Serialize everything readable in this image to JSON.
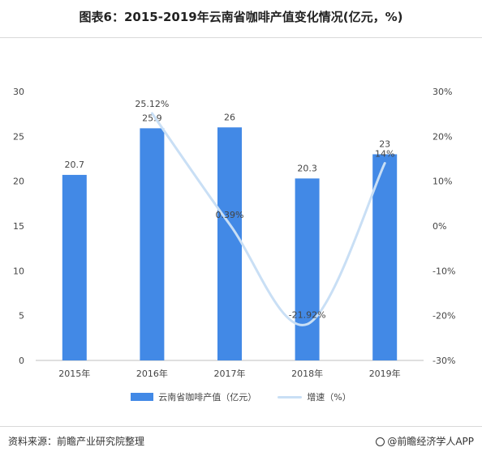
{
  "title": "图表6：2015-2019年云南省咖啡产值变化情况(亿元，%)",
  "source": "资料来源：前瞻产业研究院整理",
  "brand": "@前瞻经济学人APP",
  "colors": {
    "bar": "#4289e6",
    "line": "#c9dff5"
  },
  "chart_data": {
    "type": "bar",
    "categories": [
      "2015年",
      "2016年",
      "2017年",
      "2018年",
      "2019年"
    ],
    "series": [
      {
        "name": "云南省咖啡产值（亿元）",
        "type": "bar",
        "axis": "left",
        "values": [
          20.7,
          25.9,
          26,
          20.3,
          23
        ],
        "labels": [
          "20.7",
          "25.9",
          "26",
          "20.3",
          "23"
        ]
      },
      {
        "name": "增速（%）",
        "type": "line",
        "axis": "right",
        "values": [
          null,
          25.12,
          0.39,
          -21.92,
          14
        ],
        "labels": [
          "",
          "25.12%",
          "0.39%",
          "-21.92%",
          "14%"
        ]
      }
    ],
    "y_left": {
      "min": 0,
      "max": 30,
      "ticks": [
        "0",
        "5",
        "10",
        "15",
        "20",
        "25",
        "30"
      ]
    },
    "y_right": {
      "min": -30,
      "max": 30,
      "ticks": [
        "-30%",
        "-20%",
        "-10%",
        "0%",
        "10%",
        "20%",
        "30%"
      ]
    },
    "grid": false,
    "legend_position": "bottom"
  }
}
